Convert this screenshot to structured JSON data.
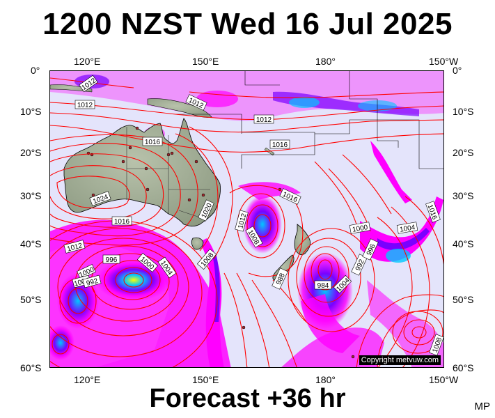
{
  "title": "1200 NZST Wed 16 Jul 2025",
  "subtitle": "Forecast +36 hr",
  "initials": "MP",
  "copyright": "Copyright metvuw.com",
  "axes": {
    "top_lon": [
      "120°E",
      "150°E",
      "180°",
      "150°W"
    ],
    "bottom_lon": [
      "120°E",
      "150°E",
      "180°",
      "150°W"
    ],
    "left_lat": [
      "0°",
      "10°S",
      "20°S",
      "30°S",
      "40°S",
      "50°S",
      "60°S"
    ],
    "right_lat": [
      "0°",
      "10°S",
      "20°S",
      "30°S",
      "40°S",
      "50°S",
      "60°S"
    ]
  },
  "isobar_labels": [
    "1012",
    "1012",
    "1012",
    "1012",
    "1016",
    "1016",
    "1016",
    "1016",
    "1024",
    "1020",
    "1016",
    "1012",
    "1012",
    "1008",
    "1008",
    "1004",
    "1000",
    "996",
    "1000",
    "1004",
    "992",
    "988",
    "984",
    "1004",
    "992",
    "996",
    "1000",
    "1004",
    "1008",
    "1012",
    "1016",
    "1032"
  ],
  "colors": {
    "background": "#e4e4fb",
    "land": "#a9b59d",
    "isobar": "#ff0000",
    "precip_light": "#ff00ff",
    "precip_mid": "#7a00ff",
    "precip_heavy": "#00c8ff",
    "precip_extreme": "#ffff00"
  }
}
